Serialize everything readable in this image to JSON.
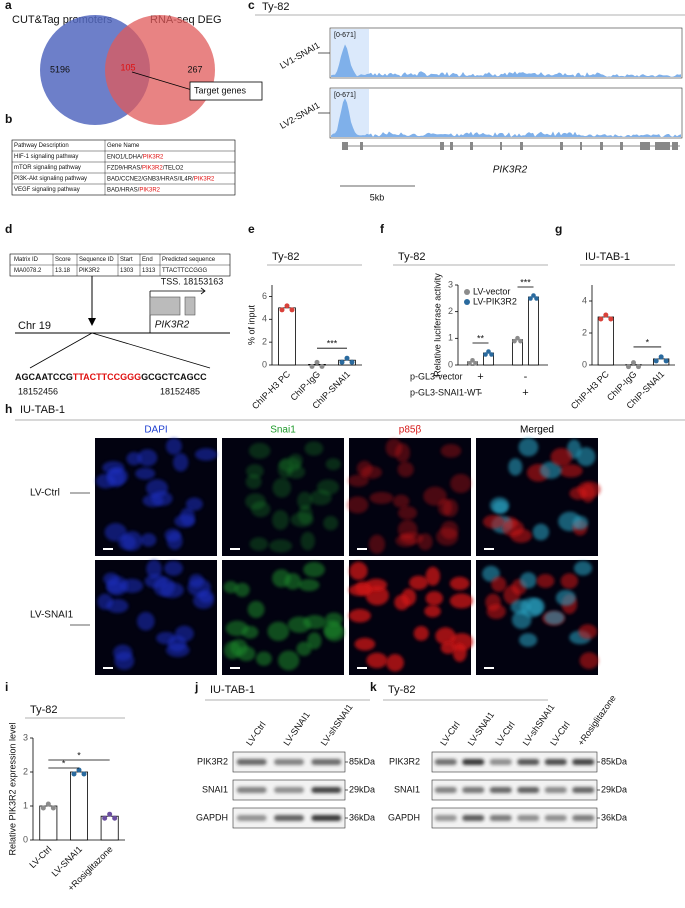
{
  "a": {
    "label": "a",
    "left": "CUT&Tag promoters",
    "right": "RNA-seq DEG",
    "left_only": "5196",
    "overlap": "105",
    "right_only": "267",
    "callout": "Target genes"
  },
  "b": {
    "label": "b",
    "header": [
      "Pathway Description",
      "Gene Name"
    ],
    "rows": [
      {
        "name": "HIF-1 signaling pathway",
        "gene_pre": "ENO1/LDHA/",
        "gene_red": "PIK3R2"
      },
      {
        "name": "mTOR signaling pathway",
        "gene_pre": "FZD9/HRAS/",
        "gene_red": "PIK3R2",
        "gene_post": "/TELO2"
      },
      {
        "name": "PI3K-Akt signaling pathway",
        "gene_pre": "BAD/CCNE2/GNB3/HRAS/IL4R/",
        "gene_red": "PIK3R2"
      },
      {
        "name": "VEGF signaling pathway",
        "gene_pre": "BAD/HRAS/",
        "gene_red": "PIK3R2"
      }
    ]
  },
  "c": {
    "label": "c",
    "cell": "Ty-82",
    "tracks": [
      {
        "name": "LV1-SNAI1",
        "range": "[0-671]"
      },
      {
        "name": "LV2-SNAI1",
        "range": "[0-671]"
      }
    ],
    "gene": "PIK3R2",
    "scale": "5kb"
  },
  "d": {
    "label": "d",
    "header": [
      "Matrix ID",
      "Score",
      "Sequence ID",
      "Start",
      "End",
      "Predicted sequence"
    ],
    "row": [
      "MA0078.2",
      "13.18",
      "PIK3R2",
      "1303",
      "1313",
      "TTACTTCCGGG"
    ],
    "tss": "TSS. 18153163",
    "chrom": "Chr 19",
    "gene": "PIK3R2",
    "seq_pre": "AGCAATCCG",
    "seq_motif": "TTACTTCCGGG",
    "seq_post": "GCGCTCAGCC",
    "start": "18152456",
    "end": "18152485"
  },
  "e": {
    "label": "e",
    "title": "Ty-82",
    "ylabel": "% of input",
    "categories": [
      "ChIP-H3 PC",
      "ChIP-IgG",
      "ChIP-SNAI1"
    ],
    "values": [
      5,
      0.05,
      0.42
    ],
    "colors": [
      "#d9413a",
      "#8c8c8c",
      "#2a6a9e"
    ],
    "ylim": [
      0,
      7
    ],
    "yticks": [
      0,
      2,
      4,
      6
    ],
    "sig": "***"
  },
  "f": {
    "label": "f",
    "title": "Ty-82",
    "ylabel": "Relative luciferase activity",
    "series": [
      {
        "name": "LV-vector",
        "color": "#8c8c8c",
        "values": [
          0.12,
          0.95
        ]
      },
      {
        "name": "LV-PIK3R2",
        "color": "#2a6a9e",
        "values": [
          0.45,
          2.55
        ]
      }
    ],
    "rows": [
      {
        "name": "p-GL3-vector",
        "signs": [
          "+",
          "-"
        ]
      },
      {
        "name": "p-GL3-SNAI1-WT",
        "signs": [
          "-",
          "+"
        ]
      }
    ],
    "ylim": [
      0,
      3
    ],
    "yticks": [
      0,
      1,
      2,
      3
    ],
    "sig": [
      "**",
      "***"
    ]
  },
  "g": {
    "label": "g",
    "title": "IU-TAB-1",
    "categories": [
      "ChIP-H3 PC",
      "ChIP-IgG",
      "ChIP-SNAI1"
    ],
    "values": [
      3,
      0.02,
      0.38
    ],
    "colors": [
      "#d9413a",
      "#8c8c8c",
      "#2a6a9e"
    ],
    "ylim": [
      0,
      5
    ],
    "yticks": [
      0,
      2,
      4
    ],
    "sig": "*"
  },
  "h": {
    "label": "h",
    "cell": "IU-TAB-1",
    "channels": [
      "DAPI",
      "Snai1",
      "p85β",
      "Merged"
    ],
    "channel_colors": [
      "#1f3fd0",
      "#1e9a2a",
      "#d61b1b",
      "#000000"
    ],
    "rows": [
      "LV-Ctrl",
      "LV-SNAI1"
    ]
  },
  "i": {
    "label": "i",
    "title": "Ty-82",
    "ylabel": "Relative PIK3R2 expression level",
    "categories": [
      "LV-Ctrl",
      "LV-SNAI1",
      "+Rosiglitazone"
    ],
    "values": [
      1.0,
      2.0,
      0.7
    ],
    "colors": [
      "#8c8c8c",
      "#2a6a9e",
      "#6b4fa0"
    ],
    "ylim": [
      0,
      3
    ],
    "yticks": [
      0,
      1,
      2,
      3
    ],
    "sig": [
      "*",
      "*"
    ]
  },
  "j": {
    "label": "j",
    "cell": "IU-TAB-1",
    "lanes": [
      "LV-Ctrl",
      "LV-SNAI1",
      "LV-shSNAI1"
    ],
    "proteins": [
      {
        "name": "PIK3R2",
        "size": "85kDa"
      },
      {
        "name": "SNAI1",
        "size": "29kDa"
      },
      {
        "name": "GAPDH",
        "size": "36kDa"
      }
    ]
  },
  "k": {
    "label": "k",
    "cell": "Ty-82",
    "lanes": [
      "LV-Ctrl",
      "LV-SNAI1",
      "LV-Ctrl",
      "LV-shSNAI1",
      "LV-Ctrl",
      "+Rosiglitazone"
    ],
    "proteins": [
      {
        "name": "PIK3R2",
        "size": "85kDa"
      },
      {
        "name": "SNAI1",
        "size": "29kDa"
      },
      {
        "name": "GAPDH",
        "size": "36kDa"
      }
    ]
  }
}
